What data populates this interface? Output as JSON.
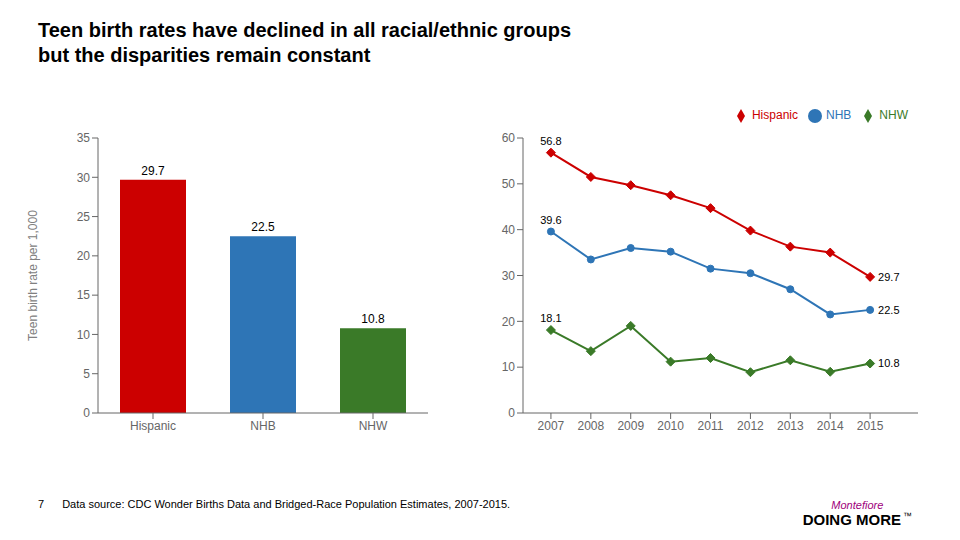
{
  "title": "Teen birth rates have declined in all racial/ethnic groups\nbut the disparities remain constant",
  "annotations": [
    {
      "text": "7"
    },
    {
      "text": "Data source: CDC Wonder Births Data and Bridged-Race Population Estimates, 2007-2015."
    },
    {
      "text": "Montefiore",
      "color": "#a0007c"
    },
    {
      "text": "DOING MORE"
    },
    {
      "text": "™"
    }
  ],
  "chart_data": [
    {
      "type": "bar",
      "categories": [
        "Hispanic",
        "NHB",
        "NHW"
      ],
      "values": [
        29.7,
        22.5,
        10.8
      ],
      "colors": [
        "#cc0000",
        "#2e75b6",
        "#3a7a28"
      ],
      "ylabel": "Teen birth rate per 1,000",
      "ylim": [
        0,
        35
      ],
      "yticks": [
        0,
        5,
        10,
        15,
        20,
        25,
        30,
        35
      ],
      "data_labels": true,
      "grid": false
    },
    {
      "type": "line",
      "x": [
        2007,
        2008,
        2009,
        2010,
        2011,
        2012,
        2013,
        2014,
        2015
      ],
      "xlim": [
        2006.3,
        2016.2
      ],
      "xticks": [
        2007,
        2008,
        2009,
        2010,
        2011,
        2012,
        2013,
        2014,
        2015
      ],
      "ylim": [
        0,
        60
      ],
      "yticks": [
        0,
        10,
        20,
        30,
        40,
        50,
        60
      ],
      "grid": false,
      "legend": "upper right",
      "series": [
        {
          "name": "Hispanic",
          "color": "#cc0000",
          "marker": "diamond",
          "values": [
            56.8,
            51.5,
            49.7,
            47.5,
            44.7,
            39.8,
            36.3,
            35.0,
            29.7
          ]
        },
        {
          "name": "NHB",
          "color": "#2e75b6",
          "marker": "circle",
          "values": [
            39.6,
            33.5,
            36.0,
            35.2,
            31.5,
            30.5,
            27.0,
            21.5,
            22.5
          ]
        },
        {
          "name": "NHW",
          "color": "#3a7a28",
          "marker": "diamond",
          "values": [
            18.1,
            13.5,
            19.0,
            11.2,
            12.0,
            8.9,
            11.5,
            9.0,
            10.8
          ]
        }
      ],
      "annotations": [
        {
          "x": 2007,
          "y": 56.8,
          "text": "56.8"
        },
        {
          "x": 2007,
          "y": 39.6,
          "text": "39.6"
        },
        {
          "x": 2007,
          "y": 18.1,
          "text": "18.1"
        },
        {
          "x": 2015,
          "y": 29.7,
          "text": "29.7"
        },
        {
          "x": 2015,
          "y": 22.5,
          "text": "22.5"
        },
        {
          "x": 2015,
          "y": 10.8,
          "text": "10.8"
        }
      ]
    }
  ]
}
